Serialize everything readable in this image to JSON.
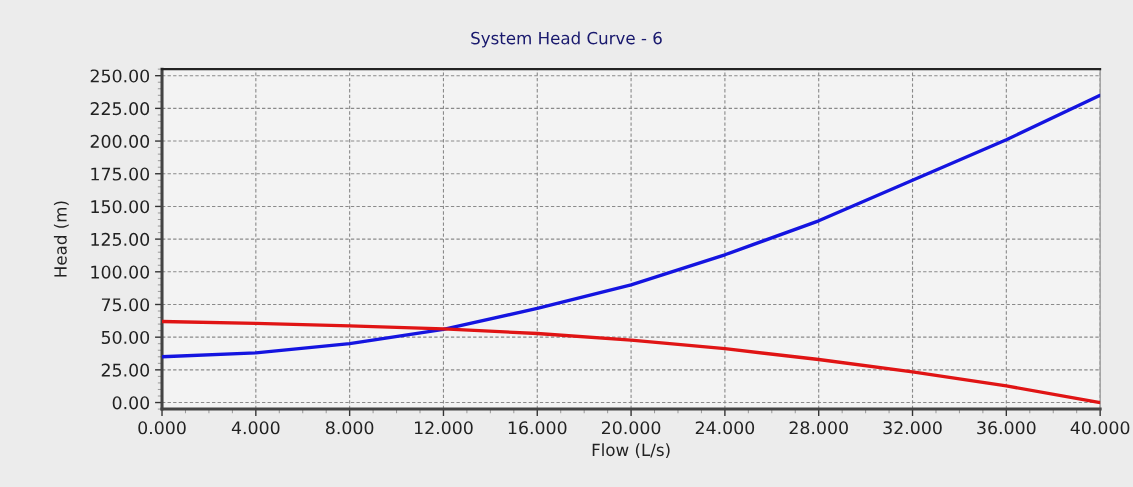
{
  "chart_data": {
    "type": "line",
    "title": "System Head Curve - 6",
    "xlabel": "Flow (L/s)",
    "ylabel": "Head (m)",
    "x": [
      0,
      4,
      8,
      12,
      16,
      20,
      24,
      28,
      32,
      36,
      40
    ],
    "series": [
      {
        "color": "#1414e0",
        "values": [
          35,
          38,
          45,
          56,
          72,
          90,
          113,
          139,
          170,
          201,
          235
        ]
      },
      {
        "color": "#e01414",
        "values": [
          62,
          60.5,
          58.7,
          56.3,
          52.8,
          47.7,
          41.2,
          32.9,
          23.5,
          12.7,
          0
        ]
      }
    ],
    "xlim": [
      0,
      40
    ],
    "ylim": [
      -5,
      255
    ],
    "xticks": [
      {
        "value": 0,
        "label": "0.000"
      },
      {
        "value": 4,
        "label": "4.000"
      },
      {
        "value": 8,
        "label": "8.000"
      },
      {
        "value": 12,
        "label": "12.000"
      },
      {
        "value": 16,
        "label": "16.000"
      },
      {
        "value": 20,
        "label": "20.000"
      },
      {
        "value": 24,
        "label": "24.000"
      },
      {
        "value": 28,
        "label": "28.000"
      },
      {
        "value": 32,
        "label": "32.000"
      },
      {
        "value": 36,
        "label": "36.000"
      },
      {
        "value": 40,
        "label": "40.000"
      }
    ],
    "yticks": [
      {
        "value": 0,
        "label": "0.00"
      },
      {
        "value": 25,
        "label": "25.00"
      },
      {
        "value": 50,
        "label": "50.00"
      },
      {
        "value": 75,
        "label": "75.00"
      },
      {
        "value": 100,
        "label": "100.00"
      },
      {
        "value": 125,
        "label": "125.00"
      },
      {
        "value": 150,
        "label": "150.00"
      },
      {
        "value": 175,
        "label": "175.00"
      },
      {
        "value": 200,
        "label": "200.00"
      },
      {
        "value": 225,
        "label": "225.00"
      },
      {
        "value": 250,
        "label": "250.00"
      }
    ],
    "grid": true,
    "legend": false,
    "marker": "none",
    "line_style": "solid"
  }
}
